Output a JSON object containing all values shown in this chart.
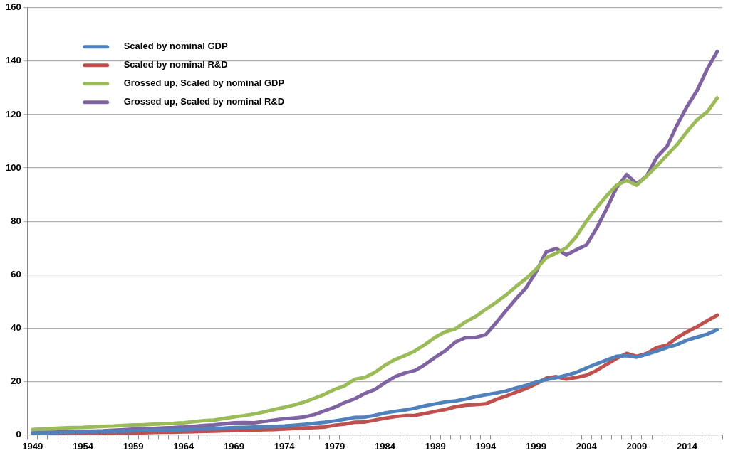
{
  "chart_data": {
    "type": "line",
    "categories": [
      "1949",
      null,
      null,
      null,
      null,
      "1954",
      null,
      null,
      null,
      null,
      "1959",
      null,
      null,
      null,
      null,
      "1964",
      null,
      null,
      null,
      null,
      "1969",
      null,
      null,
      null,
      null,
      "1974",
      null,
      null,
      null,
      null,
      "1979",
      null,
      null,
      null,
      null,
      "1984",
      null,
      null,
      null,
      null,
      "1989",
      null,
      null,
      null,
      null,
      "1994",
      null,
      null,
      null,
      null,
      "1999",
      null,
      null,
      null,
      null,
      "2004",
      null,
      null,
      null,
      null,
      "2009",
      null,
      null,
      null,
      null,
      "2014",
      null,
      null,
      null
    ],
    "series": [
      {
        "name": "Scaled by nominal GDP",
        "color": "#4f81bd",
        "values": [
          0.6,
          0.7,
          0.8,
          0.9,
          1.0,
          1.1,
          1.2,
          1.3,
          1.4,
          1.4,
          1.5,
          1.6,
          1.7,
          1.8,
          1.8,
          1.9,
          2.1,
          2.2,
          2.4,
          2.5,
          2.7,
          2.8,
          2.9,
          3.0,
          3.1,
          3.3,
          3.6,
          3.9,
          4.3,
          4.7,
          5.2,
          5.8,
          6.5,
          6.6,
          7.3,
          8.2,
          8.8,
          9.3,
          10,
          10.9,
          11.6,
          12.3,
          12.7,
          13.4,
          14.3,
          15,
          15.6,
          16.4,
          17.5,
          18.5,
          19.7,
          20.7,
          21.4,
          22.3,
          23.4,
          25,
          26.6,
          28,
          29.4,
          29.7,
          29.1,
          30.2,
          31.4,
          32.7,
          33.8,
          35.5,
          36.6,
          37.7,
          39.4
        ]
      },
      {
        "name": "Scaled by nominal R&D",
        "color": "#c0504d",
        "values": [
          0.3,
          0.3,
          0.4,
          0.4,
          0.5,
          0.5,
          0.5,
          0.6,
          0.6,
          0.7,
          0.7,
          0.8,
          0.9,
          1.0,
          1.0,
          1.1,
          1.2,
          1.3,
          1.4,
          1.5,
          1.6,
          1.7,
          1.8,
          1.9,
          2.0,
          2.2,
          2.4,
          2.6,
          2.7,
          2.9,
          3.6,
          4.0,
          4.7,
          4.8,
          5.5,
          6.2,
          6.8,
          7.2,
          7.3,
          8,
          8.8,
          9.5,
          10.5,
          11.1,
          11.3,
          11.6,
          13.2,
          14.5,
          15.9,
          17.3,
          19.1,
          21.2,
          21.8,
          20.9,
          21.5,
          22.3,
          24.1,
          26.4,
          28.6,
          30.5,
          29.4,
          30.5,
          32.7,
          33.6,
          36.4,
          38.6,
          40.5,
          42.7,
          44.8
        ]
      },
      {
        "name": "Grossed up, Scaled by nominal GDP",
        "color": "#9bbb59",
        "values": [
          2.0,
          2.2,
          2.4,
          2.6,
          2.7,
          2.8,
          3.0,
          3.2,
          3.3,
          3.5,
          3.7,
          3.8,
          4.0,
          4.2,
          4.3,
          4.5,
          4.9,
          5.3,
          5.5,
          6.1,
          6.7,
          7.2,
          7.8,
          8.6,
          9.5,
          10.3,
          11.2,
          12.3,
          13.7,
          15.2,
          17,
          18.4,
          20.8,
          21.5,
          23.4,
          26.1,
          28.2,
          29.7,
          31.5,
          33.9,
          36.6,
          38.6,
          39.7,
          42.3,
          44.3,
          47,
          49.5,
          52.3,
          55.5,
          58.5,
          62,
          66.3,
          68,
          70,
          74.3,
          80,
          85,
          89.5,
          93.5,
          95.3,
          93.5,
          97,
          100.7,
          104.7,
          108.7,
          113.6,
          118,
          121,
          126.2
        ]
      },
      {
        "name": "Grossed up, Scaled by nominal R&D",
        "color": "#8064a2",
        "values": [
          0.9,
          1.0,
          1.0,
          1.1,
          1.2,
          1.3,
          1.4,
          1.5,
          1.7,
          1.9,
          2.1,
          2.2,
          2.4,
          2.6,
          2.7,
          2.9,
          3.2,
          3.5,
          3.7,
          4.1,
          4.5,
          4.6,
          4.5,
          5.0,
          5.5,
          6.0,
          6.3,
          6.7,
          7.6,
          9.0,
          10.3,
          12.1,
          13.5,
          15.5,
          17,
          19.5,
          21.8,
          23.2,
          24.1,
          26.4,
          29.1,
          31.5,
          34.8,
          36.4,
          36.5,
          37.5,
          41.8,
          46.4,
          50.9,
          55,
          61,
          68.5,
          69.8,
          67.4,
          69.3,
          71.1,
          77.3,
          84.6,
          92.6,
          97.5,
          94,
          97,
          104,
          108,
          116,
          123,
          129,
          137,
          143.6
        ]
      }
    ],
    "ylim": [
      0,
      160
    ],
    "yticks": [
      0,
      20,
      40,
      60,
      80,
      100,
      120,
      140,
      160
    ],
    "grid": "y",
    "legend": "top left",
    "marker": "none",
    "line_style": "solid"
  }
}
